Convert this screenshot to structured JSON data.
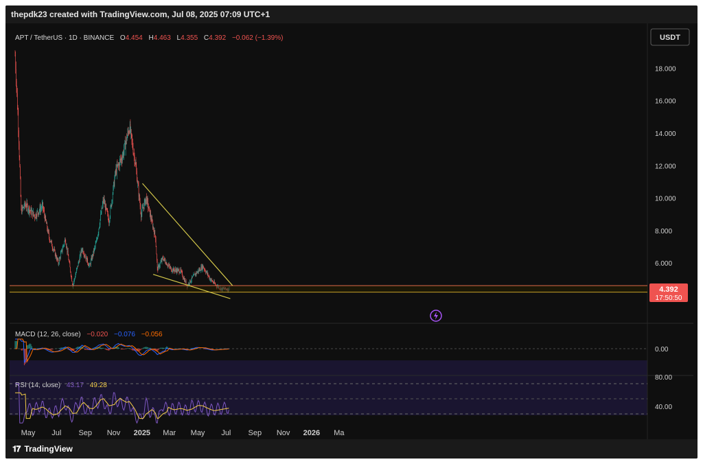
{
  "header": {
    "text": "thepdk23 created with TradingView.com, Jul 08, 2025 07:09 UTC+1"
  },
  "footer": {
    "brand": "TradingView"
  },
  "symbol_bar": {
    "symbol": "APT / TetherUS · 1D · BINANCE",
    "o_label": "O",
    "o": "4.454",
    "h_label": "H",
    "h": "4.463",
    "l_label": "L",
    "l": "4.355",
    "c_label": "C",
    "c": "4.392",
    "change": "−0.062 (−1.39%)"
  },
  "currency_badge": "USDT",
  "last_price_tag": {
    "price": "4.392",
    "countdown": "17:50:50"
  },
  "colors": {
    "up": "#26a69a",
    "down": "#ef5350",
    "trendline": "#d4c84a",
    "support": "#c9a227",
    "macd": "#2962ff",
    "signal": "#ff6d00",
    "rsi": "#7e57c2",
    "rsi_ma": "#f7d046"
  },
  "chart_data": [
    {
      "type": "candlestick",
      "title": "APT / TetherUS · 1D · BINANCE",
      "x_tick_labels": [
        "May",
        "Jul",
        "Sep",
        "Nov",
        "2025",
        "Mar",
        "May",
        "Jul",
        "Sep",
        "Nov",
        "2026",
        "Ma"
      ],
      "y_tick_labels": [
        "18.000",
        "16.000",
        "14.000",
        "12.000",
        "10.000",
        "8.000",
        "6.000"
      ],
      "ylim": [
        3.0,
        19.5
      ],
      "price_path": [
        {
          "x": "Apr 03",
          "y": 18.8
        },
        {
          "x": "Apr 10",
          "y": 14.5
        },
        {
          "x": "Apr 16",
          "y": 9.2
        },
        {
          "x": "Apr 25",
          "y": 9.6
        },
        {
          "x": "May 15",
          "y": 8.9
        },
        {
          "x": "Jun 01",
          "y": 9.5
        },
        {
          "x": "Jun 15",
          "y": 7.6
        },
        {
          "x": "Jul 05",
          "y": 6.0
        },
        {
          "x": "Jul 20",
          "y": 7.5
        },
        {
          "x": "Aug 05",
          "y": 4.6
        },
        {
          "x": "Aug 25",
          "y": 6.9
        },
        {
          "x": "Sep 10",
          "y": 5.8
        },
        {
          "x": "Sep 25",
          "y": 7.3
        },
        {
          "x": "Oct 10",
          "y": 9.9
        },
        {
          "x": "Oct 22",
          "y": 8.6
        },
        {
          "x": "Nov 05",
          "y": 11.6
        },
        {
          "x": "Nov 20",
          "y": 12.6
        },
        {
          "x": "Dec 05",
          "y": 14.4
        },
        {
          "x": "Dec 18",
          "y": 12.1
        },
        {
          "x": "Dec 30",
          "y": 9.0
        },
        {
          "x": "Jan 10",
          "y": 10.0
        },
        {
          "x": "Jan 30",
          "y": 7.6
        },
        {
          "x": "Feb 03",
          "y": 5.6
        },
        {
          "x": "Feb 15",
          "y": 6.3
        },
        {
          "x": "Mar 05",
          "y": 5.6
        },
        {
          "x": "Mar 25",
          "y": 5.5
        },
        {
          "x": "Apr 08",
          "y": 4.6
        },
        {
          "x": "Apr 25",
          "y": 5.3
        },
        {
          "x": "May 12",
          "y": 5.8
        },
        {
          "x": "May 28",
          "y": 5.0
        },
        {
          "x": "Jun 10",
          "y": 4.6
        },
        {
          "x": "Jun 22",
          "y": 4.4
        },
        {
          "x": "Jul 08",
          "y": 4.392
        }
      ],
      "annotations": {
        "resistance_trendline": [
          {
            "x": "Jan 02",
            "y": 10.9
          },
          {
            "x": "Jul 15",
            "y": 4.6
          }
        ],
        "support_trendline": [
          {
            "x": "Jan 25",
            "y": 5.3
          },
          {
            "x": "Jul 10",
            "y": 3.8
          }
        ],
        "horizontal_support": [
          4.2,
          4.6
        ]
      }
    },
    {
      "type": "line",
      "title": "MACD (12, 26, close)",
      "legend": [
        "−0.020",
        "−0.076",
        "−0.056"
      ],
      "y_tick_labels": [
        "0.00"
      ]
    },
    {
      "type": "line",
      "title": "RSI (14, close)",
      "legend": [
        "43.17",
        "49.28"
      ],
      "y_tick_labels": [
        "80.00",
        "40.00"
      ]
    }
  ]
}
